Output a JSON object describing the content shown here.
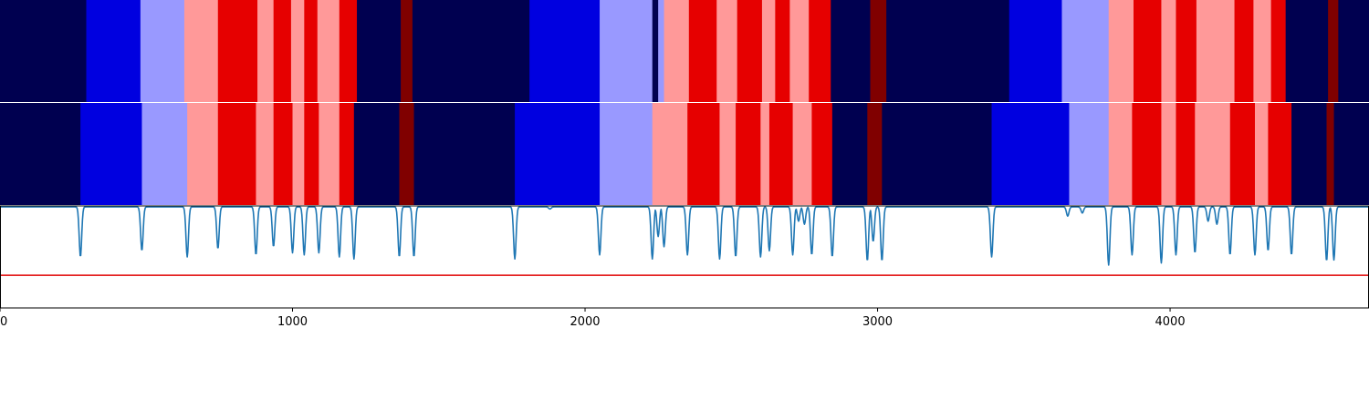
{
  "chart_data": {
    "type": "heatmap",
    "title": "",
    "xlabel": "",
    "ylabel": "",
    "xlim": [
      0,
      4680
    ],
    "x_ticks": [
      {
        "value": 0,
        "label": "0"
      },
      {
        "value": 1000,
        "label": "1000"
      },
      {
        "value": 2000,
        "label": "2000"
      },
      {
        "value": 3000,
        "label": "3000"
      },
      {
        "value": 4000,
        "label": "4000"
      }
    ],
    "grid": false,
    "legend": "none",
    "state_colors": {
      "0": "#000050",
      "1": "#0000e0",
      "2": "#9999ff",
      "3": "#ff9999",
      "4": "#e60000",
      "5": "#800000"
    },
    "tracks": [
      {
        "segments": [
          [
            0,
            295,
            0
          ],
          [
            295,
            480,
            1
          ],
          [
            480,
            630,
            2
          ],
          [
            630,
            745,
            3
          ],
          [
            745,
            880,
            4
          ],
          [
            880,
            935,
            3
          ],
          [
            935,
            995,
            4
          ],
          [
            995,
            1040,
            3
          ],
          [
            1040,
            1085,
            4
          ],
          [
            1085,
            1160,
            3
          ],
          [
            1160,
            1220,
            4
          ],
          [
            1220,
            1370,
            0
          ],
          [
            1370,
            1410,
            5
          ],
          [
            1410,
            1810,
            0
          ],
          [
            1810,
            2050,
            1
          ],
          [
            2050,
            2230,
            2
          ],
          [
            2230,
            2250,
            0
          ],
          [
            2250,
            2270,
            2
          ],
          [
            2270,
            2355,
            3
          ],
          [
            2355,
            2450,
            4
          ],
          [
            2450,
            2520,
            3
          ],
          [
            2520,
            2605,
            4
          ],
          [
            2605,
            2650,
            3
          ],
          [
            2650,
            2700,
            4
          ],
          [
            2700,
            2765,
            3
          ],
          [
            2765,
            2840,
            4
          ],
          [
            2840,
            2975,
            0
          ],
          [
            2975,
            3030,
            5
          ],
          [
            3030,
            3450,
            0
          ],
          [
            3450,
            3630,
            1
          ],
          [
            3630,
            3790,
            2
          ],
          [
            3790,
            3875,
            3
          ],
          [
            3875,
            3970,
            4
          ],
          [
            3970,
            4020,
            3
          ],
          [
            4020,
            4090,
            4
          ],
          [
            4090,
            4220,
            3
          ],
          [
            4220,
            4285,
            4
          ],
          [
            4285,
            4345,
            3
          ],
          [
            4345,
            4395,
            4
          ],
          [
            4395,
            4540,
            0
          ],
          [
            4540,
            4575,
            5
          ],
          [
            4575,
            4680,
            0
          ]
        ]
      },
      {
        "segments": [
          [
            0,
            275,
            0
          ],
          [
            275,
            485,
            1
          ],
          [
            485,
            640,
            2
          ],
          [
            640,
            745,
            3
          ],
          [
            745,
            875,
            4
          ],
          [
            875,
            935,
            3
          ],
          [
            935,
            1000,
            4
          ],
          [
            1000,
            1040,
            3
          ],
          [
            1040,
            1090,
            4
          ],
          [
            1090,
            1160,
            3
          ],
          [
            1160,
            1210,
            4
          ],
          [
            1210,
            1365,
            0
          ],
          [
            1365,
            1415,
            5
          ],
          [
            1415,
            1760,
            0
          ],
          [
            1760,
            2050,
            1
          ],
          [
            2050,
            2230,
            2
          ],
          [
            2230,
            2350,
            3
          ],
          [
            2350,
            2460,
            4
          ],
          [
            2460,
            2515,
            3
          ],
          [
            2515,
            2600,
            4
          ],
          [
            2600,
            2630,
            3
          ],
          [
            2630,
            2710,
            4
          ],
          [
            2710,
            2775,
            3
          ],
          [
            2775,
            2845,
            4
          ],
          [
            2845,
            2965,
            0
          ],
          [
            2965,
            3015,
            5
          ],
          [
            3015,
            3390,
            0
          ],
          [
            3390,
            3655,
            1
          ],
          [
            3655,
            3790,
            2
          ],
          [
            3790,
            3870,
            3
          ],
          [
            3870,
            3970,
            4
          ],
          [
            3970,
            4020,
            3
          ],
          [
            4020,
            4085,
            4
          ],
          [
            4085,
            4205,
            3
          ],
          [
            4205,
            4290,
            4
          ],
          [
            4290,
            4335,
            3
          ],
          [
            4335,
            4415,
            4
          ],
          [
            4415,
            4535,
            0
          ],
          [
            4535,
            4560,
            5
          ],
          [
            4560,
            4680,
            0
          ]
        ]
      }
    ],
    "line_panel": {
      "ylim": [
        0,
        1
      ],
      "threshold": 0.32,
      "threshold_color": "#e00000",
      "line_color": "#1f77b4",
      "baseline": 0.99,
      "dips": [
        [
          275,
          0.5
        ],
        [
          485,
          0.56
        ],
        [
          640,
          0.5
        ],
        [
          745,
          0.58
        ],
        [
          875,
          0.52
        ],
        [
          935,
          0.6
        ],
        [
          1000,
          0.54
        ],
        [
          1040,
          0.52
        ],
        [
          1090,
          0.54
        ],
        [
          1160,
          0.5
        ],
        [
          1210,
          0.48
        ],
        [
          1365,
          0.5
        ],
        [
          1415,
          0.5
        ],
        [
          1760,
          0.48
        ],
        [
          1880,
          0.97
        ],
        [
          2050,
          0.52
        ],
        [
          2230,
          0.48
        ],
        [
          2250,
          0.7
        ],
        [
          2270,
          0.6
        ],
        [
          2350,
          0.52
        ],
        [
          2460,
          0.48
        ],
        [
          2515,
          0.5
        ],
        [
          2600,
          0.5
        ],
        [
          2630,
          0.56
        ],
        [
          2710,
          0.52
        ],
        [
          2730,
          0.85
        ],
        [
          2750,
          0.82
        ],
        [
          2775,
          0.52
        ],
        [
          2845,
          0.5
        ],
        [
          2965,
          0.46
        ],
        [
          2985,
          0.65
        ],
        [
          3015,
          0.46
        ],
        [
          3390,
          0.5
        ],
        [
          3650,
          0.9
        ],
        [
          3700,
          0.93
        ],
        [
          3790,
          0.42
        ],
        [
          3870,
          0.52
        ],
        [
          3970,
          0.44
        ],
        [
          4020,
          0.52
        ],
        [
          4085,
          0.54
        ],
        [
          4130,
          0.85
        ],
        [
          4160,
          0.82
        ],
        [
          4205,
          0.52
        ],
        [
          4290,
          0.52
        ],
        [
          4335,
          0.56
        ],
        [
          4415,
          0.52
        ],
        [
          4535,
          0.46
        ],
        [
          4560,
          0.47
        ]
      ]
    }
  }
}
